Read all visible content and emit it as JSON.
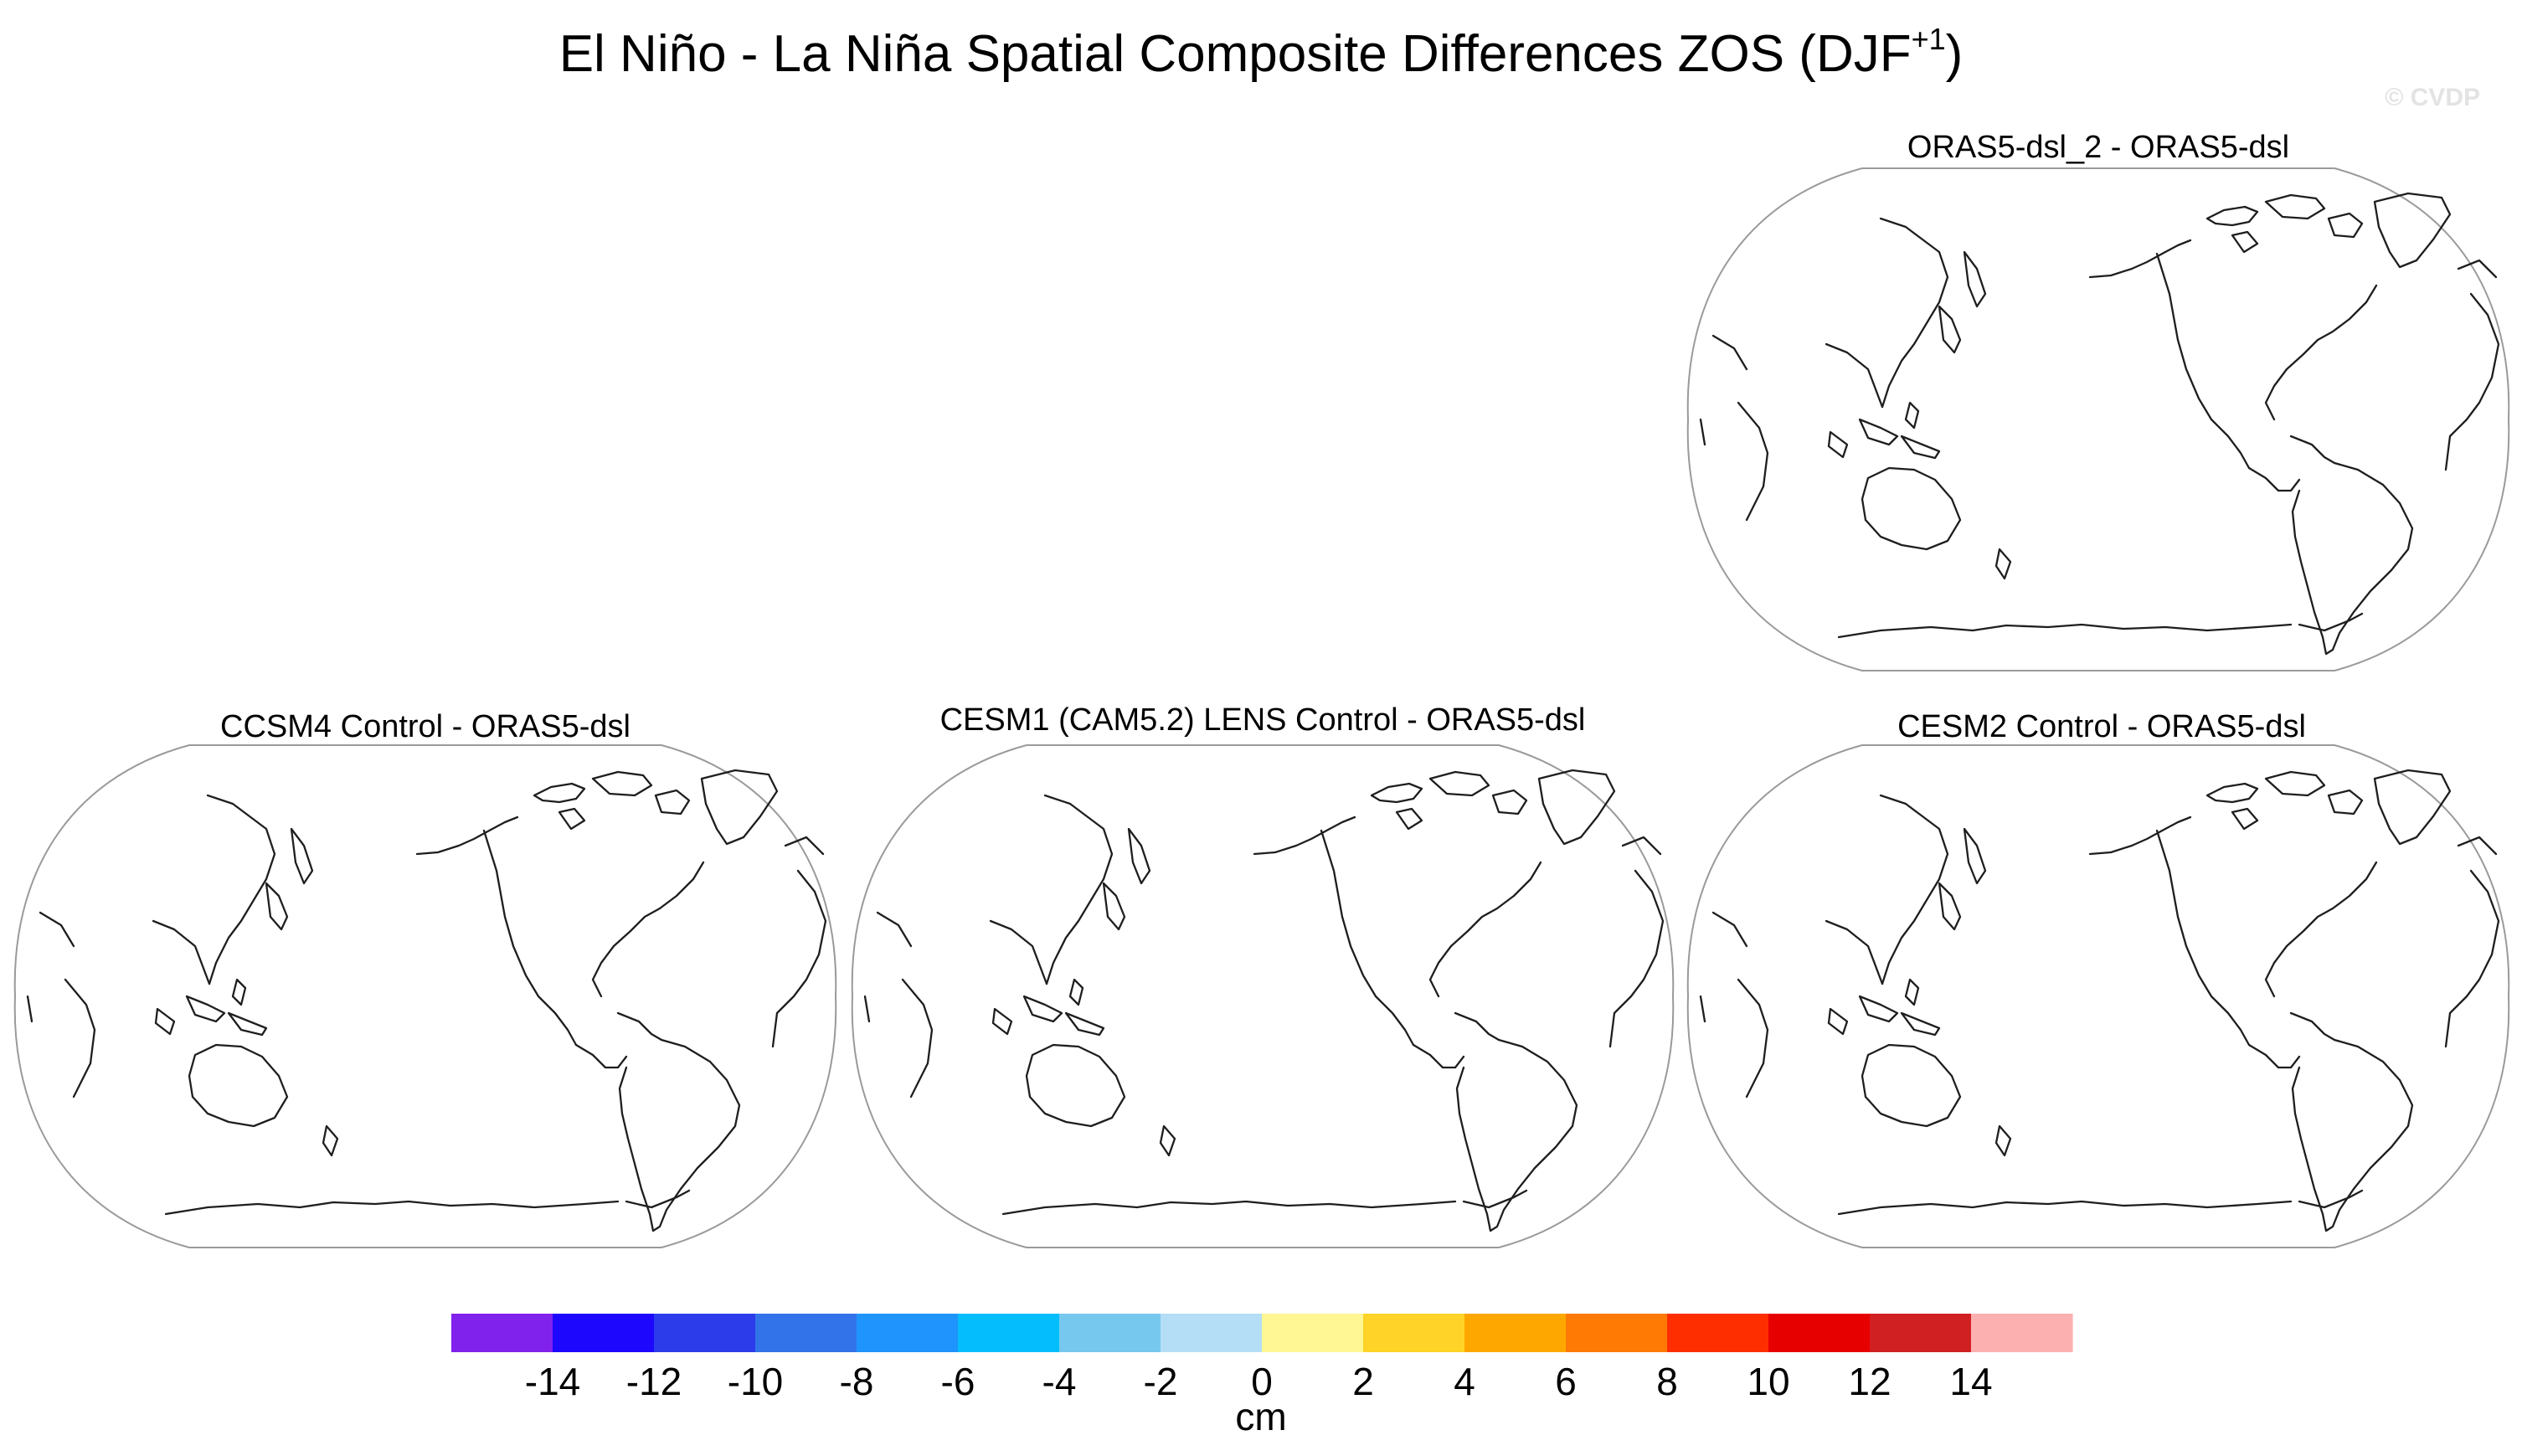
{
  "figure": {
    "title_main": "El Niño - La Niña Spatial Composite Differences ZOS (DJF",
    "title_sup": "+1",
    "title_close": ")",
    "copyright": "© CVDP"
  },
  "panels": [
    {
      "id": "orasdsl2",
      "title": "ORAS5-dsl_2 - ORAS5-dsl"
    },
    {
      "id": "ccsm4",
      "title": "CCSM4 Control - ORAS5-dsl"
    },
    {
      "id": "cesm1",
      "title": "CESM1 (CAM5.2) LENS Control - ORAS5-dsl"
    },
    {
      "id": "cesm2",
      "title": "CESM2 Control - ORAS5-dsl"
    }
  ],
  "colorbar": {
    "units": "cm",
    "tick_labels": [
      "-14",
      "-12",
      "-10",
      "-8",
      "-6",
      "-4",
      "-2",
      "0",
      "2",
      "4",
      "6",
      "8",
      "10",
      "12",
      "14"
    ],
    "colors": [
      "#8121ec",
      "#1d08fd",
      "#2c3ceb",
      "#3373ea",
      "#1e94fc",
      "#03bdfd",
      "#77c8ef",
      "#b3def5",
      "#fff694",
      "#ffd327",
      "#fea700",
      "#fe7a04",
      "#fe2e00",
      "#e70000",
      "#d12022",
      "#fdb0b0"
    ]
  }
}
